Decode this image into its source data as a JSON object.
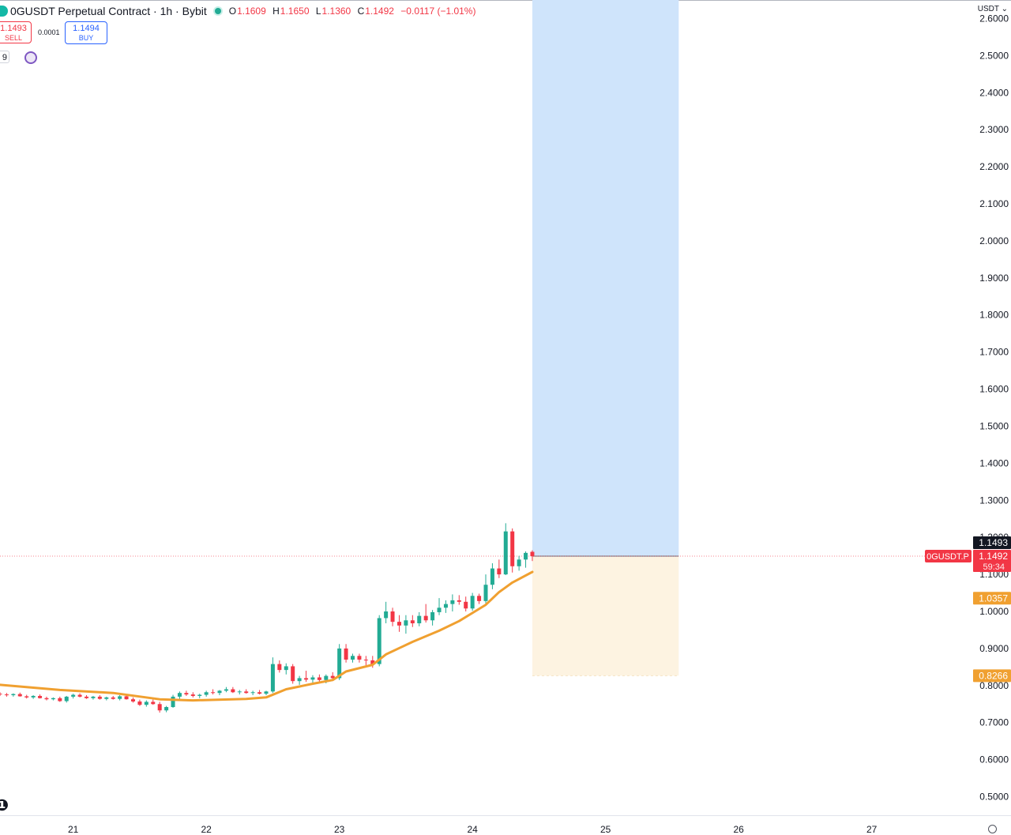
{
  "header": {
    "title": "0GUSDT Perpetual Contract · 1h · Bybit",
    "open_label": "O",
    "open": "1.1609",
    "high_label": "H",
    "high": "1.1650",
    "low_label": "L",
    "low": "1.1360",
    "close_label": "C",
    "close": "1.1492",
    "change": "−0.0117 (−1.01%)"
  },
  "trade": {
    "sell_price": "1.1493",
    "sell_label": "SELL",
    "spread": "0.0001",
    "buy_price": "1.1494",
    "buy_label": "BUY"
  },
  "indicator_count": "9",
  "currency": "USDT",
  "colors": {
    "up": "#22ab94",
    "down": "#f23645",
    "ema": "#f0a030",
    "target": "#cfe4fb",
    "stop": "#fdf3e1"
  },
  "chart_data": {
    "type": "candlestick",
    "yaxis": {
      "min": 0.45,
      "max": 2.65,
      "ticks": [
        "0.5000",
        "0.6000",
        "0.7000",
        "0.8000",
        "0.9000",
        "1.0000",
        "1.1000",
        "1.2000",
        "1.3000",
        "1.4000",
        "1.5000",
        "1.6000",
        "1.7000",
        "1.8000",
        "1.9000",
        "2.0000",
        "2.1000",
        "2.2000",
        "2.3000",
        "2.4000",
        "2.5000",
        "2.6000"
      ]
    },
    "xaxis": {
      "start": 20.45,
      "end": 27.75,
      "ticks": [
        {
          "day": 21,
          "label": "21"
        },
        {
          "day": 22,
          "label": "22"
        },
        {
          "day": 23,
          "label": "23"
        },
        {
          "day": 24,
          "label": "24"
        },
        {
          "day": 25,
          "label": "25"
        },
        {
          "day": 26,
          "label": "26"
        },
        {
          "day": 27,
          "label": "27"
        }
      ]
    },
    "candles": [
      [
        20.45,
        0.778,
        0.782,
        0.772,
        0.776
      ],
      [
        20.5,
        0.776,
        0.78,
        0.77,
        0.774
      ],
      [
        20.55,
        0.774,
        0.779,
        0.77,
        0.777
      ],
      [
        20.6,
        0.777,
        0.781,
        0.77,
        0.771
      ],
      [
        20.65,
        0.771,
        0.775,
        0.765,
        0.768
      ],
      [
        20.7,
        0.768,
        0.774,
        0.764,
        0.772
      ],
      [
        20.75,
        0.772,
        0.776,
        0.765,
        0.766
      ],
      [
        20.8,
        0.766,
        0.77,
        0.76,
        0.763
      ],
      [
        20.85,
        0.763,
        0.768,
        0.76,
        0.766
      ],
      [
        20.9,
        0.766,
        0.77,
        0.756,
        0.758
      ],
      [
        20.95,
        0.758,
        0.772,
        0.754,
        0.77
      ],
      [
        21.0,
        0.77,
        0.778,
        0.765,
        0.775
      ],
      [
        21.05,
        0.775,
        0.779,
        0.768,
        0.77
      ],
      [
        21.1,
        0.77,
        0.774,
        0.764,
        0.766
      ],
      [
        21.15,
        0.766,
        0.772,
        0.762,
        0.77
      ],
      [
        21.2,
        0.77,
        0.774,
        0.762,
        0.764
      ],
      [
        21.25,
        0.764,
        0.77,
        0.76,
        0.768
      ],
      [
        21.3,
        0.768,
        0.772,
        0.762,
        0.764
      ],
      [
        21.35,
        0.764,
        0.774,
        0.76,
        0.771
      ],
      [
        21.4,
        0.771,
        0.775,
        0.762,
        0.763
      ],
      [
        21.45,
        0.763,
        0.768,
        0.754,
        0.757
      ],
      [
        21.5,
        0.757,
        0.762,
        0.745,
        0.748
      ],
      [
        21.55,
        0.748,
        0.76,
        0.743,
        0.756
      ],
      [
        21.6,
        0.756,
        0.762,
        0.748,
        0.75
      ],
      [
        21.65,
        0.75,
        0.756,
        0.727,
        0.733
      ],
      [
        21.7,
        0.733,
        0.745,
        0.728,
        0.742
      ],
      [
        21.75,
        0.742,
        0.775,
        0.74,
        0.77
      ],
      [
        21.8,
        0.77,
        0.784,
        0.764,
        0.78
      ],
      [
        21.85,
        0.78,
        0.786,
        0.772,
        0.776
      ],
      [
        21.9,
        0.776,
        0.782,
        0.768,
        0.772
      ],
      [
        21.95,
        0.772,
        0.778,
        0.766,
        0.775
      ],
      [
        22.0,
        0.775,
        0.786,
        0.77,
        0.782
      ],
      [
        22.05,
        0.782,
        0.79,
        0.776,
        0.78
      ],
      [
        22.1,
        0.78,
        0.788,
        0.774,
        0.786
      ],
      [
        22.15,
        0.786,
        0.796,
        0.782,
        0.79
      ],
      [
        22.2,
        0.79,
        0.796,
        0.78,
        0.782
      ],
      [
        22.25,
        0.782,
        0.788,
        0.776,
        0.784
      ],
      [
        22.3,
        0.784,
        0.79,
        0.778,
        0.78
      ],
      [
        22.35,
        0.78,
        0.786,
        0.774,
        0.782
      ],
      [
        22.4,
        0.782,
        0.788,
        0.776,
        0.778
      ],
      [
        22.45,
        0.778,
        0.786,
        0.774,
        0.784
      ],
      [
        22.5,
        0.784,
        0.876,
        0.78,
        0.858
      ],
      [
        22.55,
        0.858,
        0.868,
        0.835,
        0.842
      ],
      [
        22.6,
        0.842,
        0.86,
        0.83,
        0.852
      ],
      [
        22.65,
        0.852,
        0.858,
        0.805,
        0.812
      ],
      [
        22.7,
        0.812,
        0.826,
        0.802,
        0.82
      ],
      [
        22.75,
        0.82,
        0.84,
        0.81,
        0.816
      ],
      [
        22.8,
        0.816,
        0.828,
        0.808,
        0.822
      ],
      [
        22.85,
        0.822,
        0.83,
        0.81,
        0.815
      ],
      [
        22.9,
        0.815,
        0.83,
        0.806,
        0.826
      ],
      [
        22.95,
        0.826,
        0.836,
        0.815,
        0.82
      ],
      [
        23.0,
        0.82,
        0.912,
        0.815,
        0.9
      ],
      [
        23.05,
        0.9,
        0.912,
        0.862,
        0.87
      ],
      [
        23.1,
        0.87,
        0.886,
        0.862,
        0.88
      ],
      [
        23.15,
        0.88,
        0.886,
        0.862,
        0.87
      ],
      [
        23.2,
        0.87,
        0.88,
        0.855,
        0.868
      ],
      [
        23.25,
        0.868,
        0.88,
        0.848,
        0.858
      ],
      [
        23.3,
        0.858,
        0.99,
        0.852,
        0.982
      ],
      [
        23.35,
        0.982,
        1.026,
        0.968,
        1.0
      ],
      [
        23.4,
        1.0,
        1.01,
        0.96,
        0.972
      ],
      [
        23.45,
        0.972,
        0.99,
        0.945,
        0.962
      ],
      [
        23.5,
        0.962,
        0.99,
        0.94,
        0.976
      ],
      [
        23.55,
        0.976,
        0.99,
        0.958,
        0.968
      ],
      [
        23.6,
        0.968,
        0.998,
        0.96,
        0.988
      ],
      [
        23.65,
        0.988,
        1.02,
        0.97,
        0.976
      ],
      [
        23.7,
        0.976,
        1.004,
        0.962,
        0.998
      ],
      [
        23.75,
        0.998,
        1.036,
        0.99,
        1.01
      ],
      [
        23.8,
        1.01,
        1.03,
        0.996,
        1.02
      ],
      [
        23.85,
        1.02,
        1.046,
        1.0,
        1.03
      ],
      [
        23.9,
        1.03,
        1.044,
        1.018,
        1.026
      ],
      [
        23.95,
        1.026,
        1.04,
        1.0,
        1.008
      ],
      [
        24.0,
        1.008,
        1.05,
        1.002,
        1.042
      ],
      [
        24.05,
        1.042,
        1.048,
        1.02,
        1.028
      ],
      [
        24.1,
        1.028,
        1.1,
        1.022,
        1.072
      ],
      [
        24.15,
        1.072,
        1.13,
        1.06,
        1.116
      ],
      [
        24.2,
        1.116,
        1.14,
        1.09,
        1.1
      ],
      [
        24.25,
        1.1,
        1.238,
        1.098,
        1.216
      ],
      [
        24.3,
        1.216,
        1.224,
        1.105,
        1.122
      ],
      [
        24.35,
        1.122,
        1.15,
        1.11,
        1.14
      ],
      [
        24.4,
        1.14,
        1.162,
        1.118,
        1.158
      ],
      [
        24.45,
        1.1609,
        1.165,
        1.136,
        1.1492
      ]
    ],
    "ema": {
      "name": "EMA",
      "points": [
        [
          20.45,
          0.802
        ],
        [
          20.9,
          0.788
        ],
        [
          21.3,
          0.78
        ],
        [
          21.65,
          0.763
        ],
        [
          21.9,
          0.76
        ],
        [
          22.3,
          0.764
        ],
        [
          22.45,
          0.768
        ],
        [
          22.6,
          0.79
        ],
        [
          22.8,
          0.805
        ],
        [
          22.95,
          0.815
        ],
        [
          23.05,
          0.838
        ],
        [
          23.25,
          0.856
        ],
        [
          23.35,
          0.884
        ],
        [
          23.55,
          0.918
        ],
        [
          23.75,
          0.948
        ],
        [
          23.9,
          0.974
        ],
        [
          24.0,
          0.996
        ],
        [
          24.1,
          1.018
        ],
        [
          24.2,
          1.052
        ],
        [
          24.3,
          1.078
        ],
        [
          24.45,
          1.1066
        ]
      ]
    },
    "position": {
      "x_start": 24.45,
      "x_end": 25.55,
      "entry": 1.1492,
      "target": 2.65,
      "stop": 0.8266
    },
    "price_labels": [
      {
        "value": 1.1493,
        "text": "1.1493",
        "color": "#131722"
      },
      {
        "value": 1.1492,
        "text": "1.1492",
        "sub": "59:34",
        "color": "#f23645",
        "tag": "0GUSDT.P"
      },
      {
        "value": 1.0357,
        "text": "1.0357",
        "color": "#f0a030"
      },
      {
        "value": 0.8266,
        "text": "0.8266",
        "color": "#f0a030"
      }
    ]
  }
}
